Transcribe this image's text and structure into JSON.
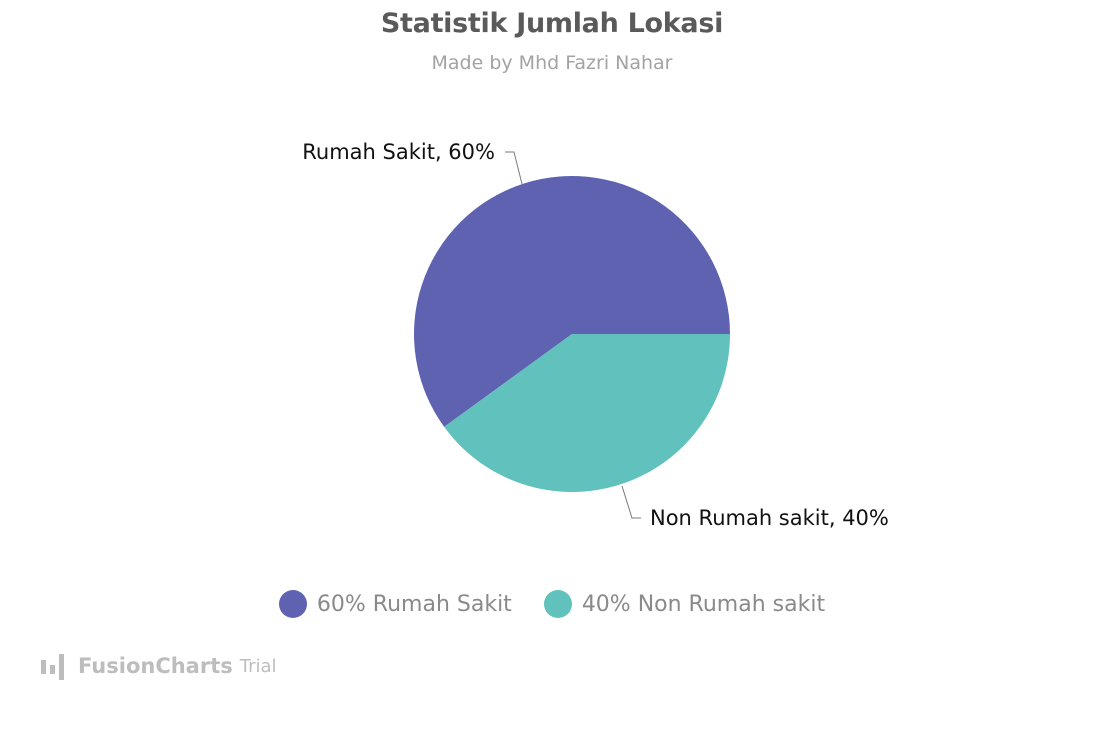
{
  "chart_data": {
    "type": "pie",
    "title": "Statistik Jumlah Lokasi",
    "subtitle": "Made by Mhd Fazri Nahar",
    "slices": [
      {
        "label": "Rumah Sakit",
        "value": 60,
        "data_label": "Rumah Sakit, 60%",
        "legend_label": "60% Rumah Sakit",
        "color": "#5f62b0"
      },
      {
        "label": "Non Rumah sakit",
        "value": 40,
        "data_label": "Non Rumah sakit, 40%",
        "legend_label": "40% Non Rumah sakit",
        "color": "#60c1bd"
      }
    ],
    "legend_position": "bottom"
  },
  "watermark": {
    "brand": "FusionCharts",
    "suffix": "Trial",
    "icon": "fusioncharts-logo-icon"
  }
}
